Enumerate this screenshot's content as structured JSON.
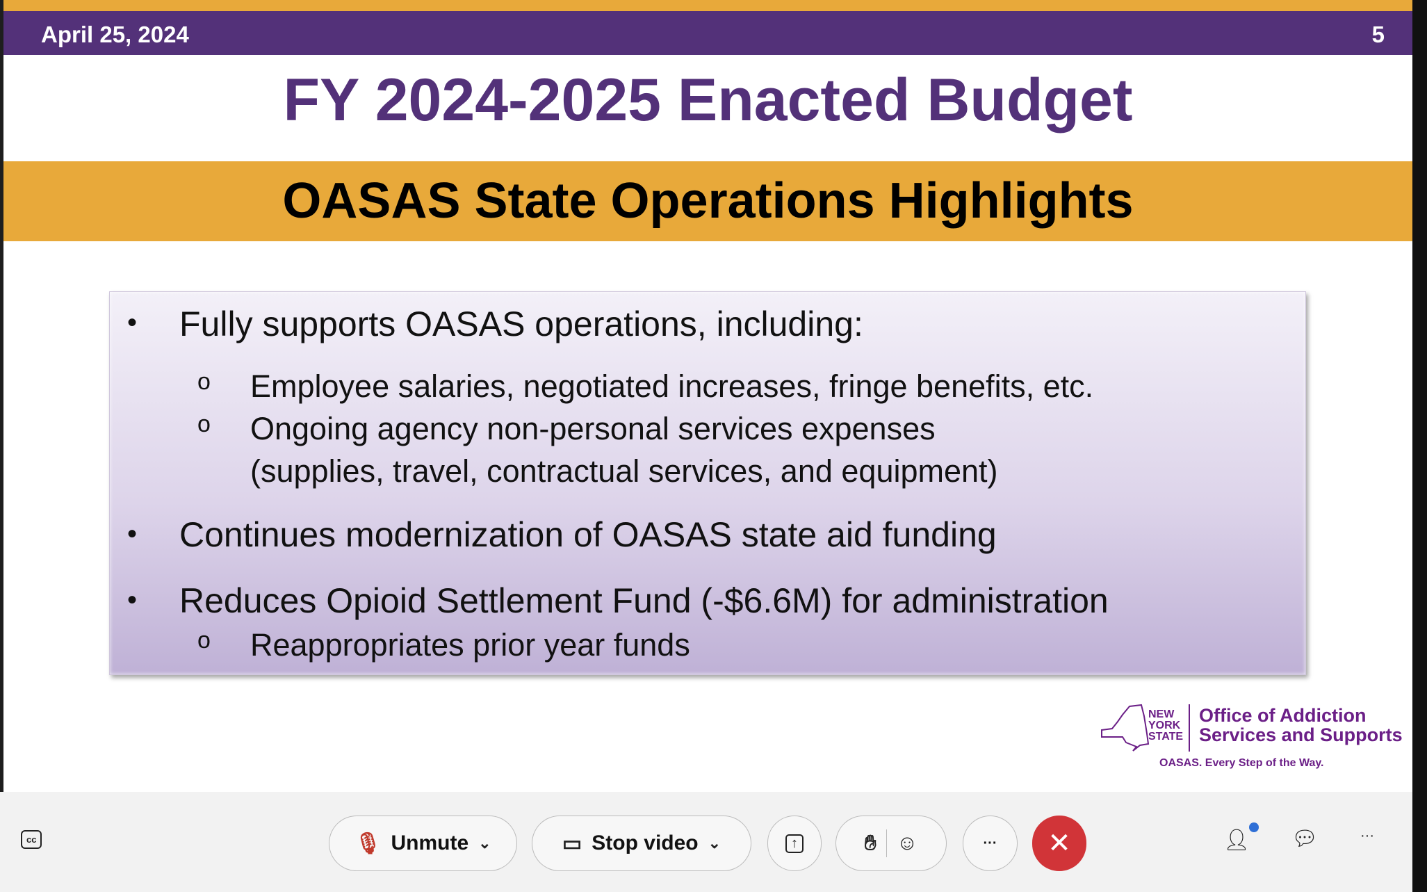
{
  "slide": {
    "date": "April 25, 2024",
    "page_number": "5",
    "title": "FY 2024-2025 Enacted Budget",
    "subtitle": "OASAS State Operations Highlights",
    "bullets": [
      {
        "text": "Fully supports OASAS operations, including:",
        "sub": [
          "Employee salaries, negotiated increases, fringe benefits, etc.",
          "Ongoing agency non-personal services expenses",
          "(supplies, travel, contractual services, and equipment)"
        ]
      },
      {
        "text": "Continues modernization of OASAS state aid funding"
      },
      {
        "text": "Reduces Opioid Settlement Fund (-$6.6M) for administration",
        "sub": [
          "Reappropriates prior year funds"
        ]
      }
    ],
    "logo": {
      "ny": "NEW YORK STATE",
      "org_line1": "Office of Addiction",
      "org_line2": "Services and Supports",
      "tagline": "OASAS. Every Step of the Way."
    },
    "colors": {
      "purple": "#533179",
      "gold": "#e8a93a"
    }
  },
  "toolbar": {
    "unmute": "Unmute",
    "stop_video": "Stop video",
    "more": "···",
    "end_color": "#d13438"
  }
}
